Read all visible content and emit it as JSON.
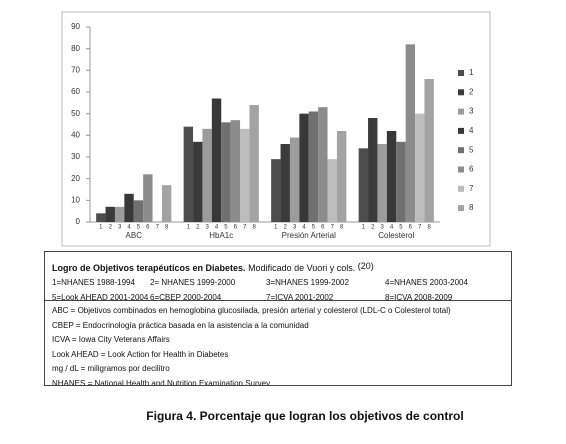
{
  "chart_data": {
    "type": "bar",
    "categories": [
      "ABC",
      "HbA1c",
      "Presión Arterial",
      "Colesterol"
    ],
    "series": [
      {
        "name": "1",
        "color": "#4d4d4d",
        "values": [
          4,
          44,
          29,
          34
        ]
      },
      {
        "name": "2",
        "color": "#3b3b3b",
        "values": [
          7,
          37,
          36,
          48
        ]
      },
      {
        "name": "3",
        "color": "#9c9c9c",
        "values": [
          7,
          43,
          39,
          36
        ]
      },
      {
        "name": "4",
        "color": "#383838",
        "values": [
          13,
          57,
          50,
          42
        ]
      },
      {
        "name": "5",
        "color": "#707070",
        "values": [
          10,
          46,
          51,
          37
        ]
      },
      {
        "name": "6",
        "color": "#8c8c8c",
        "values": [
          22,
          47,
          53,
          82
        ]
      },
      {
        "name": "7",
        "color": "#bdbdbd",
        "values": [
          null,
          43,
          29,
          50
        ]
      },
      {
        "name": "8",
        "color": "#a3a3a3",
        "values": [
          17,
          54,
          42,
          66
        ]
      }
    ],
    "ylim": [
      0,
      90
    ],
    "yticks": [
      0,
      10,
      20,
      30,
      40,
      50,
      60,
      70,
      80,
      90
    ],
    "grid": false,
    "legend": "right"
  },
  "table": {
    "title": "Logro de Objetivos terapéuticos en Diabetes.",
    "subtitle": "Modificado de Vuori y cols.",
    "reference": "(20)",
    "rows": [
      [
        "1=NHANES 1988-1994",
        "2= NHANES 1999-2000",
        "3=NHANES 1999-2002",
        "4=NHANES 2003-2004"
      ],
      [
        "5=Look AHEAD 2001-2004",
        "6=CBEP 2000-2004",
        "7=ICVA 2001-2002",
        "8=ICVA 2008-2009"
      ]
    ],
    "notes": [
      "ABC =  Objetivos combinados en hemoglobina glucosilada, presión arterial y colesterol (LDL-C o Colesterol total)",
      "CBEP = Endocrinología práctica basada en la asistencia a la comunidad",
      "ICVA = Iowa City Veterans Affairs",
      "Look AHEAD = Look Action for Health in Diabetes",
      "mg / dL = miligramos por decilitro",
      "NHANES = National Health and Nutrition Examination Survey"
    ]
  },
  "caption": "Figura 4. Porcentaje que logran los objetivos de control"
}
